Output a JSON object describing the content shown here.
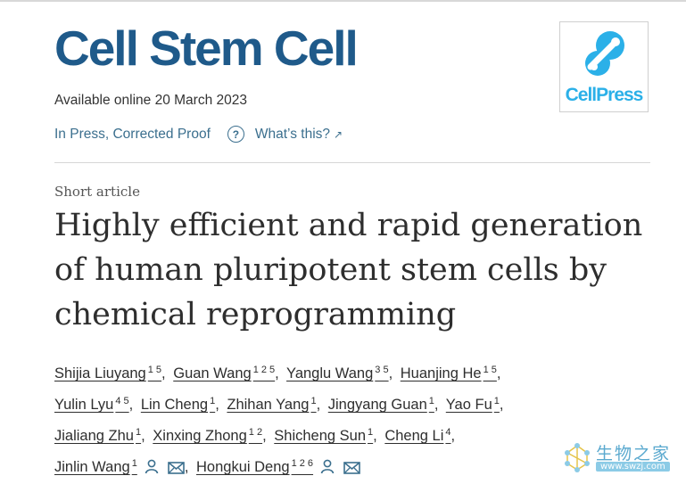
{
  "journal": {
    "title": "Cell Stem Cell"
  },
  "publisher": {
    "logo_text": "CellPress",
    "color": "#2bb0e8"
  },
  "availability": "Available online 20 March 2023",
  "status": {
    "label": "In Press, Corrected Proof",
    "help_label": "What’s this?"
  },
  "article": {
    "type": "Short article",
    "title": "Highly efficient and rapid generation of human pluripotent stem cells by chemical reprogramming"
  },
  "authors": [
    {
      "name": "Shijia Liuyang",
      "affil": "1 5"
    },
    {
      "name": "Guan Wang",
      "affil": "1 2 5"
    },
    {
      "name": "Yanglu Wang",
      "affil": "3 5"
    },
    {
      "name": "Huanjing He",
      "affil": "1 5"
    },
    {
      "name": "Yulin Lyu",
      "affil": "4 5"
    },
    {
      "name": "Lin Cheng",
      "affil": "1"
    },
    {
      "name": "Zhihan Yang",
      "affil": "1"
    },
    {
      "name": "Jingyang Guan",
      "affil": "1"
    },
    {
      "name": "Yao Fu",
      "affil": "1"
    },
    {
      "name": "Jialiang Zhu",
      "affil": "1"
    },
    {
      "name": "Xinxing Zhong",
      "affil": "1 2"
    },
    {
      "name": "Shicheng Sun",
      "affil": "1"
    },
    {
      "name": "Cheng Li",
      "affil": "4"
    },
    {
      "name": "Jinlin Wang",
      "affil": "1"
    },
    {
      "name": "Hongkui Deng",
      "affil": "1 2 6"
    }
  ],
  "watermark": {
    "text": "生物之家",
    "url": "www.swzj.com"
  },
  "colors": {
    "journal_blue": "#1f5a8a",
    "link_blue": "#3b6f8e"
  }
}
